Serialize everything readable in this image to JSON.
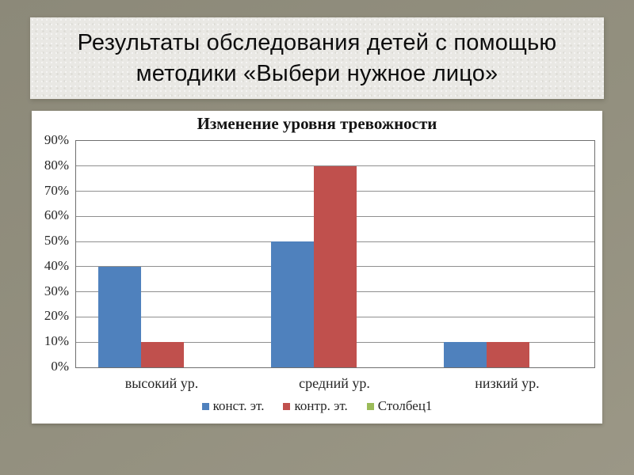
{
  "slide_title": "Результаты обследования детей с помощью методики «Выбери нужное лицо»",
  "chart_data": {
    "type": "bar",
    "title": "Изменение уровня тревожности",
    "categories": [
      "высокий ур.",
      "средний ур.",
      "низкий ур."
    ],
    "series": [
      {
        "name": "конст. эт.",
        "color": "#4F81BD",
        "values": [
          40,
          50,
          10
        ]
      },
      {
        "name": "контр. эт.",
        "color": "#C0504D",
        "values": [
          10,
          80,
          10
        ]
      },
      {
        "name": "Столбец1",
        "color": "#9BBB59",
        "values": [
          0,
          0,
          0
        ]
      }
    ],
    "ylim": [
      0,
      90
    ],
    "y_tick_step": 10,
    "y_tick_suffix": "%",
    "grid": "horizontal",
    "legend_position": "bottom"
  },
  "colors": {
    "slide_background": "#93907F",
    "title_box_background": "#E9E8E4",
    "panel_background": "#FFFFFF",
    "gridline": "#8F8F8F",
    "plot_frame": "#6F6F6F",
    "text": "#262626",
    "series_const": "#4F81BD",
    "series_contr": "#C0504D",
    "series_stolbec": "#9BBB59"
  }
}
